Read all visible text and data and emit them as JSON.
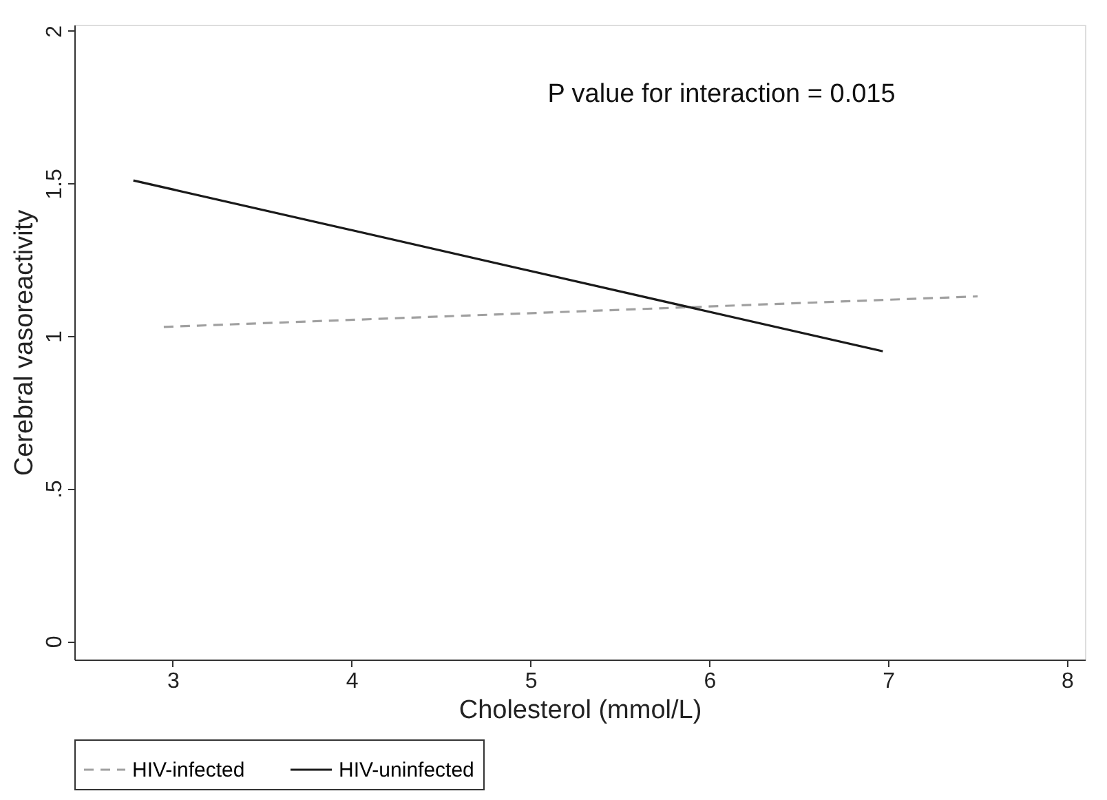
{
  "chart_data": {
    "type": "line",
    "xlabel": "Cholesterol (mmol/L)",
    "ylabel": "Cerebral vasoreactivity",
    "annotations": [
      "P value for interaction = 0.015"
    ],
    "series": [
      {
        "name": "HIV-infected",
        "color": "#a0a0a0",
        "line_style": "dashed",
        "x": [
          2.95,
          7.5
        ],
        "values": [
          1.03,
          1.13
        ]
      },
      {
        "name": "HIV-uninfected",
        "color": "#1a1a1a",
        "line_style": "solid",
        "x": [
          2.78,
          6.97
        ],
        "values": [
          1.51,
          0.95
        ]
      }
    ],
    "xlim": [
      2.45,
      8.1
    ],
    "xticks": [
      3,
      4,
      5,
      6,
      7,
      8
    ],
    "ylim": [
      -0.06,
      2.02
    ],
    "yticks": [
      {
        "value": 0,
        "label": "0"
      },
      {
        "value": 0.5,
        "label": ".5"
      },
      {
        "value": 1,
        "label": "1"
      },
      {
        "value": 1.5,
        "label": "1.5"
      },
      {
        "value": 2,
        "label": "2"
      }
    ],
    "grid": false,
    "legend": "bottom",
    "marker": "none"
  }
}
